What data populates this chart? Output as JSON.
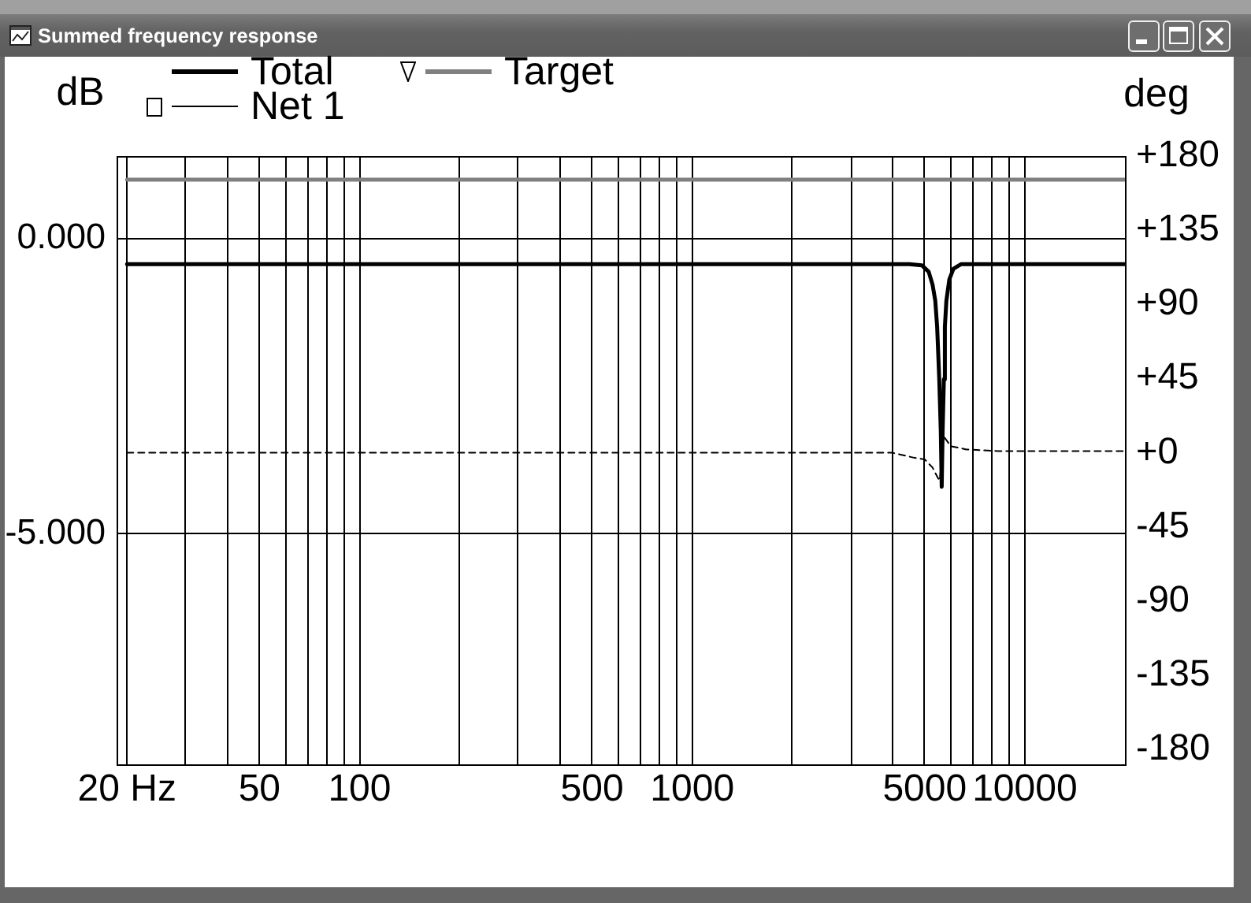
{
  "chart_data": {
    "type": "line",
    "title": "Summed frequency response",
    "ylabel": "dB",
    "y2label": "deg",
    "series": [
      {
        "name": "Total",
        "color": "#000000",
        "x": [
          20,
          1000,
          4500,
          4900,
          5140,
          5280,
          5380,
          5450,
          5490,
          5530,
          5590,
          5625,
          5660,
          5710,
          5750,
          5810,
          5930,
          6100,
          6440,
          20000
        ],
        "values": [
          -0.43,
          -0.43,
          -0.43,
          -0.45,
          -0.56,
          -0.78,
          -1.05,
          -1.49,
          -1.93,
          -2.38,
          -3.27,
          -4.2,
          -3.27,
          -2.38,
          -1.49,
          -1.05,
          -0.69,
          -0.51,
          -0.43,
          -0.43
        ]
      },
      {
        "name": "Target",
        "color": "#808080",
        "x": [
          20,
          20000
        ],
        "values": [
          1.0,
          1.0
        ]
      },
      {
        "name": "Net 1",
        "color": "#000000"
      },
      {
        "color": "#000000",
        "axis": "y2",
        "line_style": "dashed",
        "x": [
          20,
          1000,
          4000,
          4640,
          5000,
          5280,
          5470,
          5550,
          5700,
          5990,
          6680,
          8300,
          20000
        ],
        "values": [
          0,
          0,
          0,
          -3,
          -4,
          -9,
          -15,
          -17,
          10,
          4,
          2,
          1,
          1
        ]
      }
    ],
    "xlim": [
      18.6,
      20000
    ],
    "xticks": [
      {
        "value": 20,
        "label": "20 Hz"
      },
      {
        "value": 30,
        "label": null
      },
      {
        "value": 40,
        "label": null
      },
      50,
      {
        "value": 60,
        "label": null
      },
      {
        "value": 70,
        "label": null
      },
      {
        "value": 80,
        "label": null
      },
      {
        "value": 90,
        "label": null
      },
      100,
      {
        "value": 200,
        "label": null
      },
      {
        "value": 300,
        "label": null
      },
      {
        "value": 400,
        "label": null
      },
      500,
      {
        "value": 600,
        "label": null
      },
      {
        "value": 700,
        "label": null
      },
      {
        "value": 800,
        "label": null
      },
      {
        "value": 900,
        "label": null
      },
      1000,
      {
        "value": 2000,
        "label": null
      },
      {
        "value": 3000,
        "label": null
      },
      {
        "value": 4000,
        "label": null
      },
      5000,
      {
        "value": 6000,
        "label": null
      },
      {
        "value": 7000,
        "label": null
      },
      {
        "value": 8000,
        "label": null
      },
      {
        "value": 9000,
        "label": null
      },
      10000
    ],
    "ylim": [
      -8.9,
      1.4
    ],
    "yticks": [
      {
        "value": 0,
        "label": "0.000"
      },
      {
        "value": -5,
        "label": "-5.000"
      }
    ],
    "y2lim": [
      -189,
      180
    ],
    "y2ticks": [
      {
        "value": 180,
        "label": "+180"
      },
      {
        "value": 135,
        "label": "+135"
      },
      {
        "value": 90,
        "label": "+90"
      },
      {
        "value": 45,
        "label": "+45"
      },
      {
        "value": 0,
        "label": "+0"
      },
      -45,
      -90,
      -135,
      -180
    ],
    "log": "x",
    "grid": true,
    "legend": "top left",
    "line_style": "solid"
  }
}
